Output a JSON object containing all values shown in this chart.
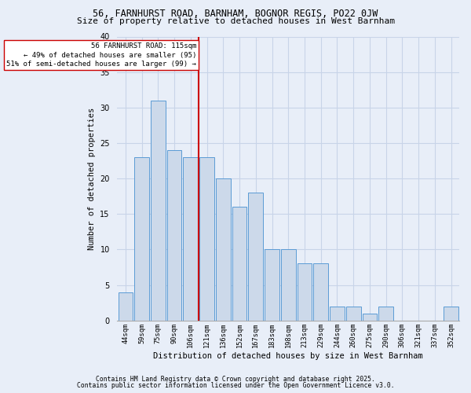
{
  "title1": "56, FARNHURST ROAD, BARNHAM, BOGNOR REGIS, PO22 0JW",
  "title2": "Size of property relative to detached houses in West Barnham",
  "xlabel": "Distribution of detached houses by size in West Barnham",
  "ylabel": "Number of detached properties",
  "categories": [
    "44sqm",
    "59sqm",
    "75sqm",
    "90sqm",
    "106sqm",
    "121sqm",
    "136sqm",
    "152sqm",
    "167sqm",
    "183sqm",
    "198sqm",
    "213sqm",
    "229sqm",
    "244sqm",
    "260sqm",
    "275sqm",
    "290sqm",
    "306sqm",
    "321sqm",
    "337sqm",
    "352sqm"
  ],
  "values": [
    4,
    23,
    31,
    24,
    23,
    23,
    20,
    16,
    18,
    10,
    10,
    8,
    8,
    2,
    2,
    1,
    2,
    0,
    0,
    0,
    2
  ],
  "bar_color": "#ccd9ea",
  "bar_edge_color": "#5b9bd5",
  "vline_idx": 5,
  "vline_color": "#cc0000",
  "annotation_title": "56 FARNHURST ROAD: 115sqm",
  "annotation_line1": "← 49% of detached houses are smaller (95)",
  "annotation_line2": "51% of semi-detached houses are larger (99) →",
  "annotation_box_color": "#ffffff",
  "annotation_box_edge": "#cc0000",
  "ylim": [
    0,
    40
  ],
  "yticks": [
    0,
    5,
    10,
    15,
    20,
    25,
    30,
    35,
    40
  ],
  "grid_color": "#c8d4e8",
  "footer1": "Contains HM Land Registry data © Crown copyright and database right 2025.",
  "footer2": "Contains public sector information licensed under the Open Government Licence v3.0.",
  "bg_color": "#e8eef8",
  "title_fontsize": 8.5,
  "subtitle_fontsize": 8,
  "footer_fontsize": 5.8
}
